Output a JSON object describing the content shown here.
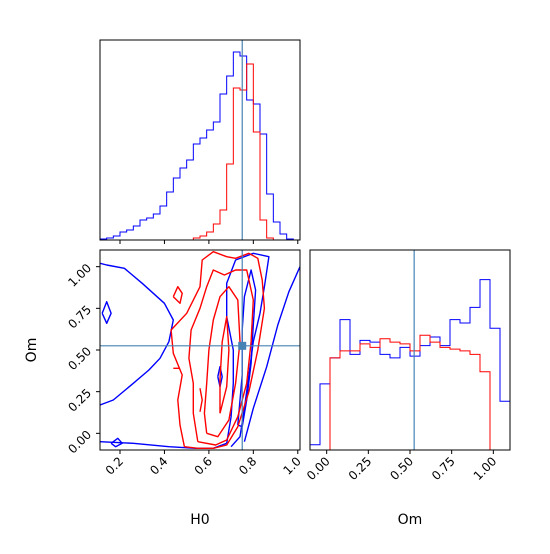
{
  "chart_data": [
    {
      "type": "histogram",
      "panel": "top-left",
      "variable": "H0",
      "xlim": [
        0.11,
        1.01
      ],
      "x_ticks": [
        0.2,
        0.4,
        0.6,
        0.8,
        1.0
      ],
      "truth": 0.75,
      "bin_edges": [
        0.11,
        0.14,
        0.17,
        0.2,
        0.23,
        0.26,
        0.29,
        0.32,
        0.35,
        0.38,
        0.41,
        0.44,
        0.47,
        0.5,
        0.53,
        0.56,
        0.59,
        0.62,
        0.65,
        0.68,
        0.71,
        0.74,
        0.77,
        0.8,
        0.83,
        0.86,
        0.89,
        0.92,
        0.95,
        0.98,
        1.01
      ],
      "series": [
        {
          "color": "#0000ff",
          "density": [
            0.005,
            0.01,
            0.02,
            0.04,
            0.05,
            0.07,
            0.1,
            0.11,
            0.13,
            0.17,
            0.24,
            0.31,
            0.36,
            0.4,
            0.48,
            0.51,
            0.55,
            0.59,
            0.73,
            0.82,
            0.94,
            0.92,
            0.7,
            0.68,
            0.53,
            0.23,
            0.09,
            0.03,
            0.005,
            0
          ]
        },
        {
          "color": "#ff0000",
          "density": [
            0,
            0,
            0,
            0,
            0,
            0,
            0,
            0,
            0,
            0,
            0,
            0,
            0,
            0,
            0.01,
            0.02,
            0.04,
            0.08,
            0.15,
            0.38,
            0.76,
            0.75,
            0.88,
            0.54,
            0.1,
            0.01,
            0,
            0,
            0,
            0
          ]
        }
      ]
    },
    {
      "type": "contour",
      "panel": "bottom-left",
      "xlabel": "H0",
      "ylabel": "Om",
      "xlim": [
        0.11,
        1.01
      ],
      "ylim": [
        -0.1,
        1.1
      ],
      "x_ticks": [
        0.2,
        0.4,
        0.6,
        0.8,
        1.0
      ],
      "x_tick_labels": [
        "0.2",
        "0.4",
        "0.6",
        "0.8",
        "1.0"
      ],
      "y_ticks": [
        0.0,
        0.25,
        0.5,
        0.75,
        1.0
      ],
      "y_tick_labels": [
        "0.00",
        "0.25",
        "0.50",
        "0.75",
        "1.00"
      ],
      "truth": [
        0.75,
        0.525
      ],
      "series": [
        {
          "color": "#0000ff",
          "contours": [
            [
              [
                0.11,
                0.17
              ],
              [
                0.17,
                0.2
              ],
              [
                0.26,
                0.3
              ],
              [
                0.33,
                0.38
              ],
              [
                0.38,
                0.45
              ],
              [
                0.42,
                0.55
              ],
              [
                0.44,
                0.68
              ],
              [
                0.4,
                0.78
              ],
              [
                0.35,
                0.84
              ],
              [
                0.3,
                0.9
              ],
              [
                0.22,
                0.99
              ],
              [
                0.14,
                1.01
              ],
              [
                0.11,
                1.02
              ]
            ],
            [
              [
                0.11,
                -0.05
              ],
              [
                0.26,
                -0.06
              ],
              [
                0.42,
                -0.08
              ],
              [
                0.54,
                -0.09
              ],
              [
                0.62,
                -0.09
              ],
              [
                0.68,
                -0.06
              ]
            ],
            [
              [
                0.68,
                -0.06
              ],
              [
                0.7,
                0.1
              ],
              [
                0.71,
                0.3
              ],
              [
                0.71,
                0.5
              ],
              [
                0.68,
                0.7
              ],
              [
                0.68,
                0.9
              ],
              [
                0.72,
                1.04
              ],
              [
                0.8,
                1.08
              ],
              [
                0.87,
                1.06
              ],
              [
                0.85,
                0.88
              ],
              [
                0.83,
                0.72
              ],
              [
                0.8,
                0.55
              ],
              [
                0.78,
                0.35
              ],
              [
                0.76,
                0.15
              ],
              [
                0.74,
                -0.02
              ],
              [
                0.7,
                -0.08
              ]
            ],
            [
              [
                0.73,
                0.05
              ],
              [
                0.75,
                0.35
              ],
              [
                0.75,
                0.62
              ],
              [
                0.76,
                0.82
              ],
              [
                0.79,
                0.98
              ],
              [
                0.81,
                0.86
              ],
              [
                0.8,
                0.65
              ],
              [
                0.79,
                0.42
              ],
              [
                0.77,
                0.2
              ],
              [
                0.75,
                0.04
              ],
              [
                0.73,
                0.05
              ]
            ],
            [
              [
                0.76,
                -0.05
              ],
              [
                0.8,
                0.15
              ],
              [
                0.86,
                0.4
              ],
              [
                0.91,
                0.65
              ],
              [
                0.96,
                0.85
              ],
              [
                1.01,
                1.0
              ]
            ],
            [
              [
                0.12,
                0.72
              ],
              [
                0.14,
                0.66
              ],
              [
                0.16,
                0.72
              ],
              [
                0.14,
                0.79
              ],
              [
                0.12,
                0.72
              ]
            ],
            [
              [
                0.16,
                -0.06
              ],
              [
                0.19,
                -0.03
              ],
              [
                0.21,
                -0.06
              ],
              [
                0.18,
                -0.08
              ],
              [
                0.16,
                -0.06
              ]
            ],
            [
              [
                0.64,
                0.34
              ],
              [
                0.65,
                0.28
              ],
              [
                0.66,
                0.34
              ],
              [
                0.65,
                0.4
              ],
              [
                0.64,
                0.34
              ]
            ]
          ]
        },
        {
          "color": "#ff0000",
          "contours": [
            [
              [
                0.49,
                -0.08
              ],
              [
                0.55,
                -0.09
              ],
              [
                0.62,
                -0.09
              ],
              [
                0.68,
                -0.07
              ],
              [
                0.73,
                0.04
              ],
              [
                0.78,
                0.25
              ],
              [
                0.82,
                0.5
              ],
              [
                0.85,
                0.75
              ],
              [
                0.84,
                0.92
              ],
              [
                0.82,
                1.05
              ],
              [
                0.78,
                1.08
              ],
              [
                0.72,
                1.05
              ],
              [
                0.68,
                1.06
              ],
              [
                0.62,
                1.09
              ],
              [
                0.57,
                1.04
              ],
              [
                0.56,
                0.88
              ],
              [
                0.5,
                0.72
              ],
              [
                0.43,
                0.62
              ],
              [
                0.44,
                0.48
              ],
              [
                0.48,
                0.35
              ],
              [
                0.46,
                0.2
              ],
              [
                0.47,
                0.05
              ],
              [
                0.49,
                -0.08
              ]
            ],
            [
              [
                0.55,
                -0.05
              ],
              [
                0.63,
                -0.07
              ],
              [
                0.68,
                -0.04
              ],
              [
                0.73,
                0.1
              ],
              [
                0.77,
                0.3
              ],
              [
                0.79,
                0.55
              ],
              [
                0.8,
                0.8
              ],
              [
                0.77,
                0.98
              ],
              [
                0.72,
                0.98
              ],
              [
                0.67,
                0.95
              ],
              [
                0.62,
                0.98
              ],
              [
                0.59,
                0.88
              ],
              [
                0.56,
                0.75
              ],
              [
                0.52,
                0.62
              ],
              [
                0.51,
                0.45
              ],
              [
                0.53,
                0.3
              ],
              [
                0.53,
                0.12
              ],
              [
                0.55,
                -0.05
              ]
            ],
            [
              [
                0.59,
                0.0
              ],
              [
                0.64,
                -0.02
              ],
              [
                0.69,
                0.08
              ],
              [
                0.72,
                0.3
              ],
              [
                0.74,
                0.55
              ],
              [
                0.73,
                0.8
              ],
              [
                0.69,
                0.88
              ],
              [
                0.65,
                0.82
              ],
              [
                0.62,
                0.68
              ],
              [
                0.6,
                0.5
              ],
              [
                0.59,
                0.3
              ],
              [
                0.58,
                0.12
              ],
              [
                0.59,
                0.0
              ]
            ],
            [
              [
                0.65,
                0.12
              ],
              [
                0.68,
                0.28
              ],
              [
                0.69,
                0.5
              ],
              [
                0.68,
                0.7
              ],
              [
                0.66,
                0.55
              ],
              [
                0.65,
                0.32
              ],
              [
                0.65,
                0.12
              ]
            ],
            [
              [
                0.44,
                0.82
              ],
              [
                0.47,
                0.78
              ],
              [
                0.48,
                0.84
              ],
              [
                0.46,
                0.88
              ],
              [
                0.44,
                0.82
              ]
            ],
            [
              [
                0.56,
                0.13
              ],
              [
                0.57,
                0.2
              ],
              [
                0.56,
                0.27
              ]
            ],
            [
              [
                0.44,
                0.39
              ],
              [
                0.47,
                0.39
              ]
            ]
          ]
        }
      ]
    },
    {
      "type": "histogram",
      "panel": "bottom-right",
      "variable": "Om",
      "xlabel": "Om",
      "xlim": [
        -0.1,
        1.1
      ],
      "x_ticks": [
        0.0,
        0.25,
        0.5,
        0.75,
        1.0
      ],
      "x_tick_labels": [
        "0.00",
        "0.25",
        "0.50",
        "0.75",
        "1.00"
      ],
      "truth": 0.525,
      "bin_edges": [
        -0.1,
        -0.04,
        0.02,
        0.08,
        0.14,
        0.2,
        0.26,
        0.32,
        0.38,
        0.44,
        0.5,
        0.56,
        0.62,
        0.68,
        0.74,
        0.8,
        0.86,
        0.92,
        0.98,
        1.04,
        1.1
      ],
      "series": [
        {
          "color": "#0000ff",
          "density": [
            0.03,
            0.38,
            0.53,
            0.75,
            0.55,
            0.63,
            0.62,
            0.55,
            0.53,
            0.59,
            0.54,
            0.6,
            0.65,
            0.6,
            0.75,
            0.73,
            0.82,
            0.98,
            0.7,
            0.28
          ]
        },
        {
          "color": "#ff0000",
          "density": [
            0,
            0,
            0.53,
            0.57,
            0.57,
            0.61,
            0.59,
            0.64,
            0.62,
            0.61,
            0.57,
            0.66,
            0.62,
            0.59,
            0.58,
            0.57,
            0.55,
            0.45,
            0,
            0
          ]
        }
      ]
    }
  ],
  "styles": {
    "truth_color": "#4682b4",
    "axis_color": "#000000"
  }
}
